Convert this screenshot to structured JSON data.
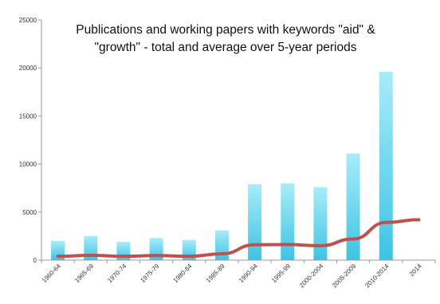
{
  "chart_data": {
    "type": "bar",
    "title_lines": [
      "Publications and working papers with keywords \"aid\" &",
      "\"growth\" - total and average over 5-year periods"
    ],
    "categories": [
      "1960-64",
      "1965-69",
      "1970-74",
      "1975-79",
      "1980-84",
      "1985-89",
      "1990-94",
      "1995-99",
      "2000-2004",
      "2005-2009",
      "2010-2014",
      "2014"
    ],
    "series": [
      {
        "kind": "bar",
        "values": [
          2000,
          2500,
          1900,
          2300,
          2100,
          3100,
          7900,
          8000,
          7600,
          11100,
          19600,
          null
        ],
        "color": "#67d3ec"
      },
      {
        "kind": "line",
        "values": [
          400,
          500,
          400,
          480,
          400,
          650,
          1600,
          1620,
          1500,
          2200,
          3920,
          4200
        ],
        "color": "#c0504d"
      }
    ],
    "yticks": [
      0,
      5000,
      10000,
      15000,
      20000,
      25000
    ],
    "ylim": [
      0,
      25000
    ],
    "grid": false,
    "legend": "none"
  }
}
